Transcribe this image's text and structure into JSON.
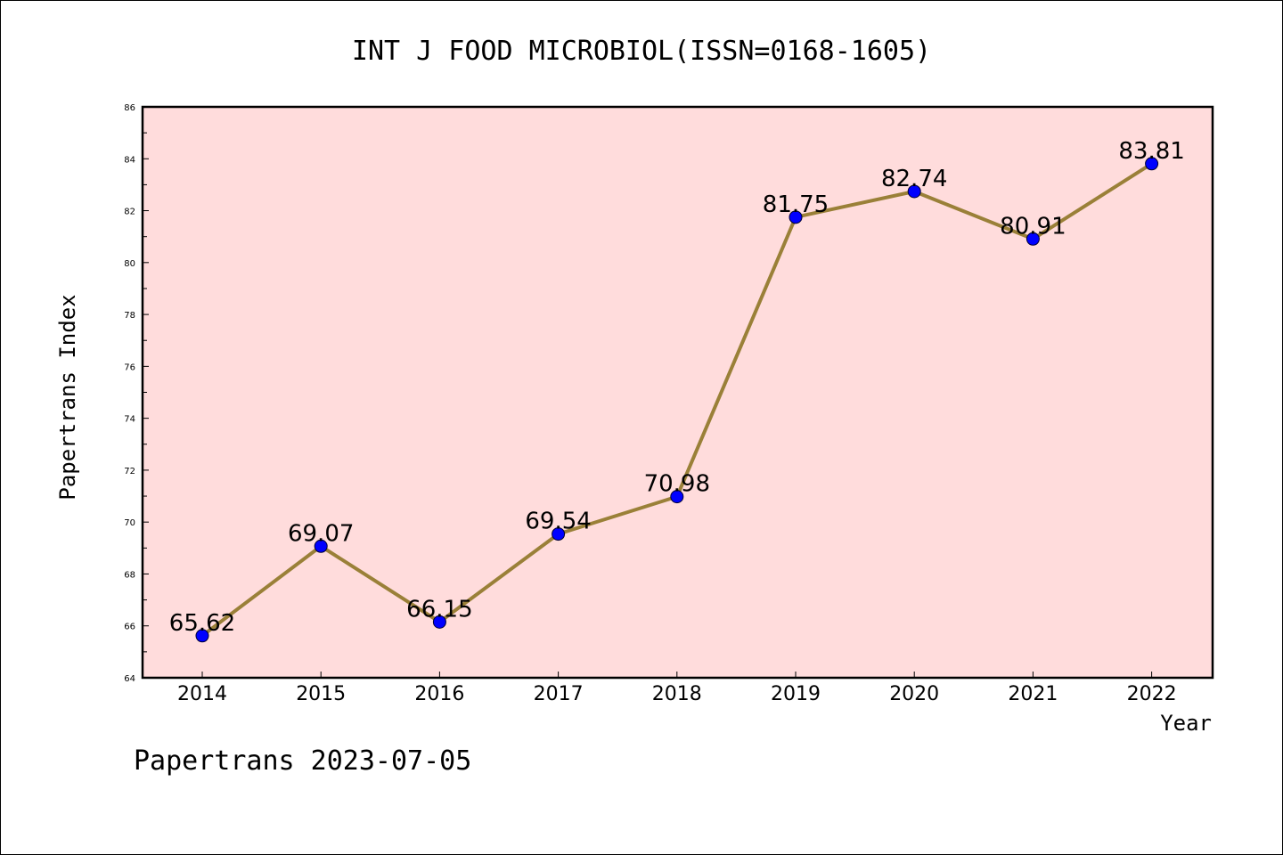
{
  "chart_data": {
    "type": "line",
    "title": "INT J FOOD MICROBIOL(ISSN=0168-1605)",
    "xlabel": "Year",
    "ylabel": "Papertrans Index",
    "categories": [
      "2014",
      "2015",
      "2016",
      "2017",
      "2018",
      "2019",
      "2020",
      "2021",
      "2022"
    ],
    "series": [
      {
        "values": [
          65.62,
          69.07,
          66.15,
          69.54,
          70.98,
          81.75,
          82.74,
          80.91,
          83.81
        ],
        "labels": [
          "65.62",
          "69.07",
          "66.15",
          "69.54",
          "70.98",
          "81.75",
          "82.74",
          "80.91",
          "83.81"
        ]
      }
    ],
    "ylim": [
      64,
      86
    ],
    "yticks": [
      "64",
      "66",
      "68",
      "70",
      "72",
      "74",
      "76",
      "78",
      "80",
      "82",
      "84",
      "86"
    ],
    "grid": false,
    "colors": {
      "plot_background": "#ffdcdc",
      "line": "#9a8038",
      "marker": "#0000ff"
    }
  },
  "footer": "Papertrans 2023-07-05"
}
